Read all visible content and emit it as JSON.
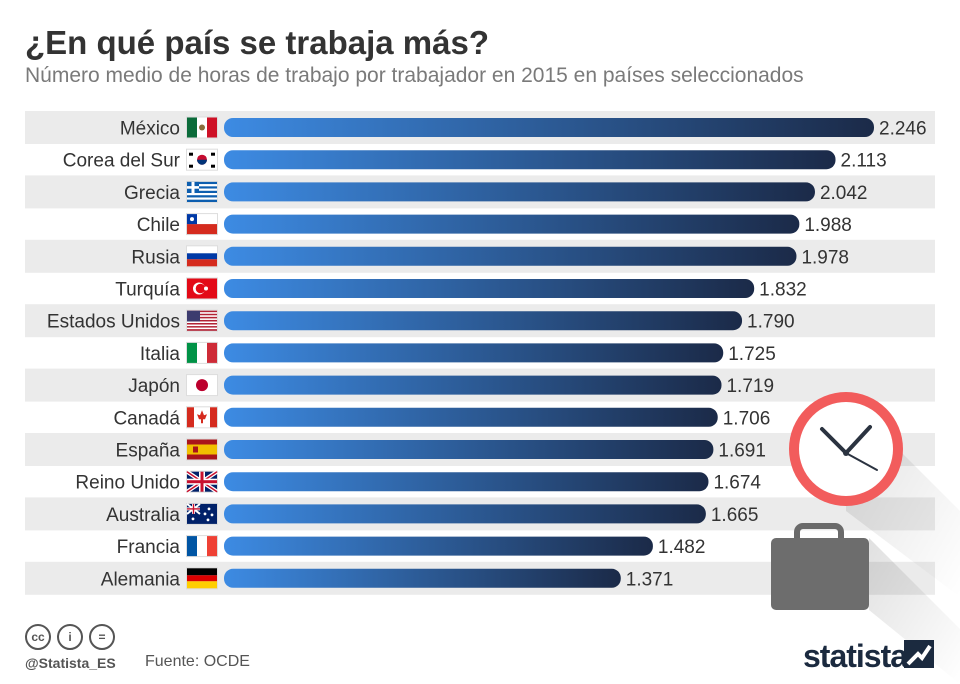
{
  "header": {
    "title": "¿En qué país se trabaja más?",
    "subtitle": "Número medio de horas de trabajo por trabajador en 2015 en países seleccionados"
  },
  "chart_data": {
    "type": "bar",
    "orientation": "horizontal",
    "title": "¿En qué país se trabaja más?",
    "subtitle": "Número medio de horas de trabajo por trabajador en 2015 en países seleccionados",
    "categories": [
      "México",
      "Corea del Sur",
      "Grecia",
      "Chile",
      "Rusia",
      "Turquía",
      "Estados Unidos",
      "Italia",
      "Japón",
      "Canadá",
      "España",
      "Reino Unido",
      "Australia",
      "Francia",
      "Alemania"
    ],
    "values": [
      2246,
      2113,
      2042,
      1988,
      1978,
      1832,
      1790,
      1725,
      1719,
      1706,
      1691,
      1674,
      1665,
      1482,
      1371
    ],
    "value_labels": [
      "2.246",
      "2.113",
      "2.042",
      "1.988",
      "1.978",
      "1.832",
      "1.790",
      "1.725",
      "1.719",
      "1.706",
      "1.691",
      "1.674",
      "1.665",
      "1.482",
      "1.371"
    ],
    "flags": [
      "flag-mexico",
      "flag-south-korea",
      "flag-greece",
      "flag-chile",
      "flag-russia",
      "flag-turkey",
      "flag-usa",
      "flag-italy",
      "flag-japan",
      "flag-canada",
      "flag-spain",
      "flag-uk",
      "flag-australia",
      "flag-france",
      "flag-germany"
    ],
    "xlabel": "",
    "ylabel": "",
    "xlim": [
      0,
      2246
    ],
    "bar_color_start": "#3d8be3",
    "bar_color_end": "#1b2a48"
  },
  "decorations": {
    "clock_icon": "clock-icon",
    "briefcase_icon": "briefcase-icon"
  },
  "footer": {
    "license_icons": [
      "cc-icon",
      "attribution-icon",
      "no-derivatives-icon"
    ],
    "license_glyphs": [
      "cc",
      "i",
      "="
    ],
    "handle": "@Statista_ES",
    "source": "Fuente: OCDE",
    "brand": "statista"
  }
}
